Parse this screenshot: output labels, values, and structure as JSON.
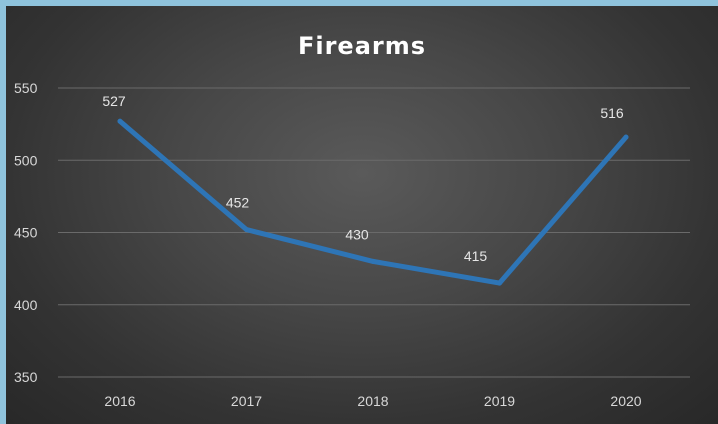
{
  "chart_data": {
    "type": "line",
    "title": "Firearms",
    "xlabel": "",
    "ylabel": "",
    "categories": [
      "2016",
      "2017",
      "2018",
      "2019",
      "2020"
    ],
    "series": [
      {
        "values": [
          527,
          452,
          430,
          415,
          516
        ],
        "color": "#2e75b6"
      }
    ],
    "data_labels": [
      "527",
      "452",
      "430",
      "415",
      "516"
    ],
    "yticks": [
      350,
      400,
      450,
      500,
      550
    ],
    "ylim": [
      350,
      550
    ],
    "grid": true,
    "legend": "none",
    "colors": {
      "background": "#3f3f3f",
      "frame": "#8fc3dc",
      "line": "#2e75b6",
      "gridline": "#6a6a6a",
      "text": "#d8d8d8"
    }
  }
}
